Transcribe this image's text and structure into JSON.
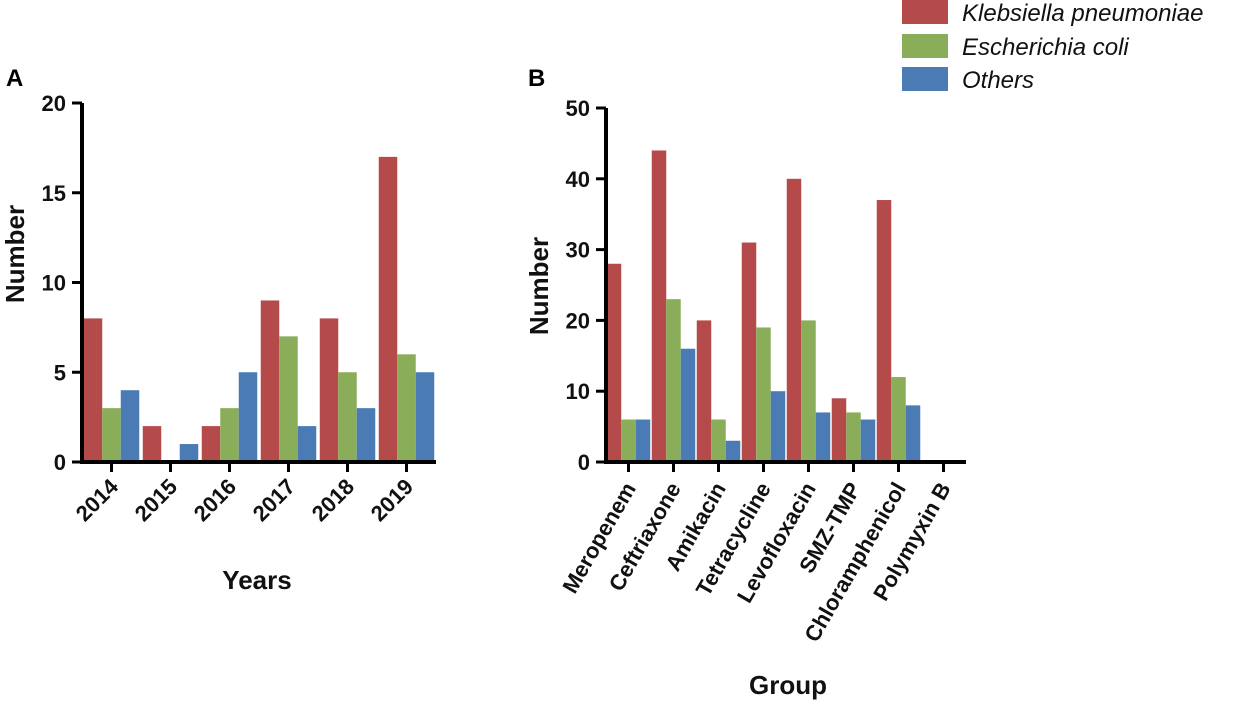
{
  "legend": [
    {
      "name": "Klebsiella pneumoniae",
      "color": "#b54a4a"
    },
    {
      "name": "Escherichia coli",
      "color": "#8aad5a"
    },
    {
      "name": "Others",
      "color": "#4a7bb5"
    }
  ],
  "chart_data": [
    {
      "panel": "A",
      "type": "bar",
      "title": "",
      "xlabel": "Years",
      "ylabel": "Number",
      "ylim": [
        0,
        20
      ],
      "yticks": [
        0,
        5,
        10,
        15,
        20
      ],
      "categories": [
        "2014",
        "2015",
        "2016",
        "2017",
        "2018",
        "2019"
      ],
      "series": [
        {
          "name": "Klebsiella pneumoniae",
          "values": [
            8,
            2,
            2,
            9,
            8,
            17
          ]
        },
        {
          "name": "Escherichia coli",
          "values": [
            3,
            0,
            3,
            7,
            5,
            6
          ]
        },
        {
          "name": "Others",
          "values": [
            4,
            1,
            5,
            2,
            3,
            5
          ]
        }
      ],
      "legend_position": "top-right"
    },
    {
      "panel": "B",
      "type": "bar",
      "title": "",
      "xlabel": "Group",
      "ylabel": "Number",
      "ylim": [
        0,
        50
      ],
      "yticks": [
        0,
        10,
        20,
        30,
        40,
        50
      ],
      "categories": [
        "Meropenem",
        "Ceftriaxone",
        "Amikacin",
        "Tetracycline",
        "Levofloxacin",
        "SMZ-TMP",
        "Chloramphenicol",
        "Polymyxin B"
      ],
      "series": [
        {
          "name": "Klebsiella pneumoniae",
          "values": [
            28,
            44,
            20,
            31,
            40,
            9,
            37,
            0
          ]
        },
        {
          "name": "Escherichia coli",
          "values": [
            6,
            23,
            6,
            19,
            20,
            7,
            12,
            0
          ]
        },
        {
          "name": "Others",
          "values": [
            6,
            16,
            3,
            10,
            7,
            6,
            8,
            0
          ]
        }
      ],
      "legend_position": "top-right"
    }
  ]
}
